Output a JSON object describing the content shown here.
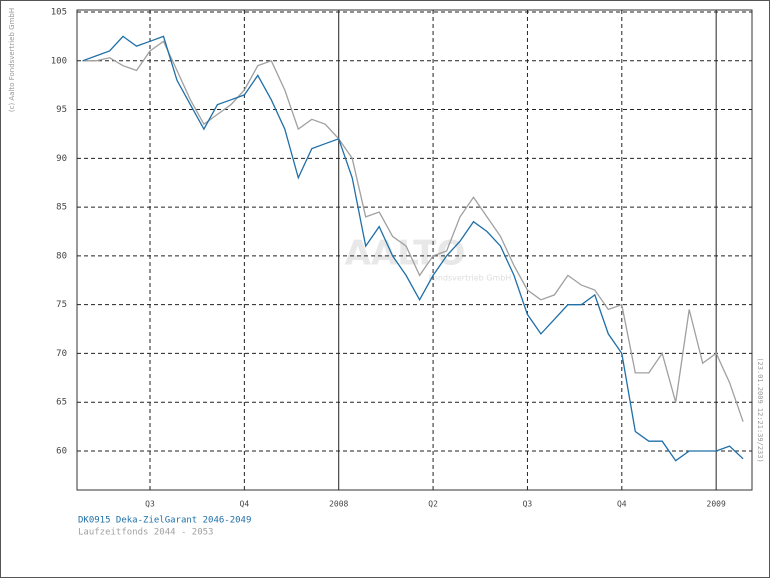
{
  "chart_data": {
    "type": "line",
    "categories": [
      null,
      null,
      null,
      null,
      null,
      "Q3",
      null,
      null,
      null,
      null,
      null,
      null,
      "Q4",
      null,
      null,
      null,
      null,
      null,
      null,
      "2008",
      null,
      null,
      null,
      null,
      null,
      null,
      "Q2",
      null,
      null,
      null,
      null,
      null,
      null,
      "Q3",
      null,
      null,
      null,
      null,
      null,
      null,
      "Q4",
      null,
      null,
      null,
      null,
      null,
      null,
      "2009",
      null,
      null
    ],
    "series": [
      {
        "name": "DK0915 Deka-ZielGarant 2046-2049",
        "color": "#1f6fa8",
        "values": [
          100,
          100.5,
          101,
          102.5,
          101.5,
          102,
          102.5,
          98,
          95.5,
          93,
          95.5,
          96,
          96.5,
          98.5,
          96,
          93,
          88,
          91,
          91.5,
          92,
          88,
          81,
          83,
          80,
          78,
          75.5,
          78,
          80,
          81.5,
          83.5,
          82.5,
          81,
          78,
          74,
          72,
          73.5,
          75,
          75,
          76,
          72,
          70,
          62,
          61,
          61,
          59,
          60,
          60,
          60,
          60.5,
          59.2
        ]
      },
      {
        "name": "Laufzeitfonds 2044 - 2053",
        "color": "#a0a0a0",
        "values": [
          100,
          100,
          100.3,
          99.5,
          99,
          101,
          102,
          99,
          96,
          93.5,
          94.5,
          95.5,
          97,
          99.5,
          100,
          97,
          93,
          94,
          93.5,
          92,
          90,
          84,
          84.5,
          82,
          81,
          78,
          80,
          80.5,
          84,
          86,
          84,
          82,
          79,
          76.5,
          75.5,
          76,
          78,
          77,
          76.5,
          74.5,
          75,
          68,
          68,
          70,
          65,
          74.5,
          69,
          70,
          67,
          63
        ]
      }
    ],
    "ylim": [
      56,
      105
    ],
    "yticks": [
      60,
      65,
      70,
      75,
      80,
      85,
      90,
      95,
      100,
      105
    ],
    "grid": true,
    "copyright": "(c) Aalto Fondsvertrieb GmbH",
    "timestamp": "(23.01.2009 12:21:39/233)",
    "watermark": "AALTO",
    "watermark_sub": "Fondsvertrieb GmbH"
  }
}
